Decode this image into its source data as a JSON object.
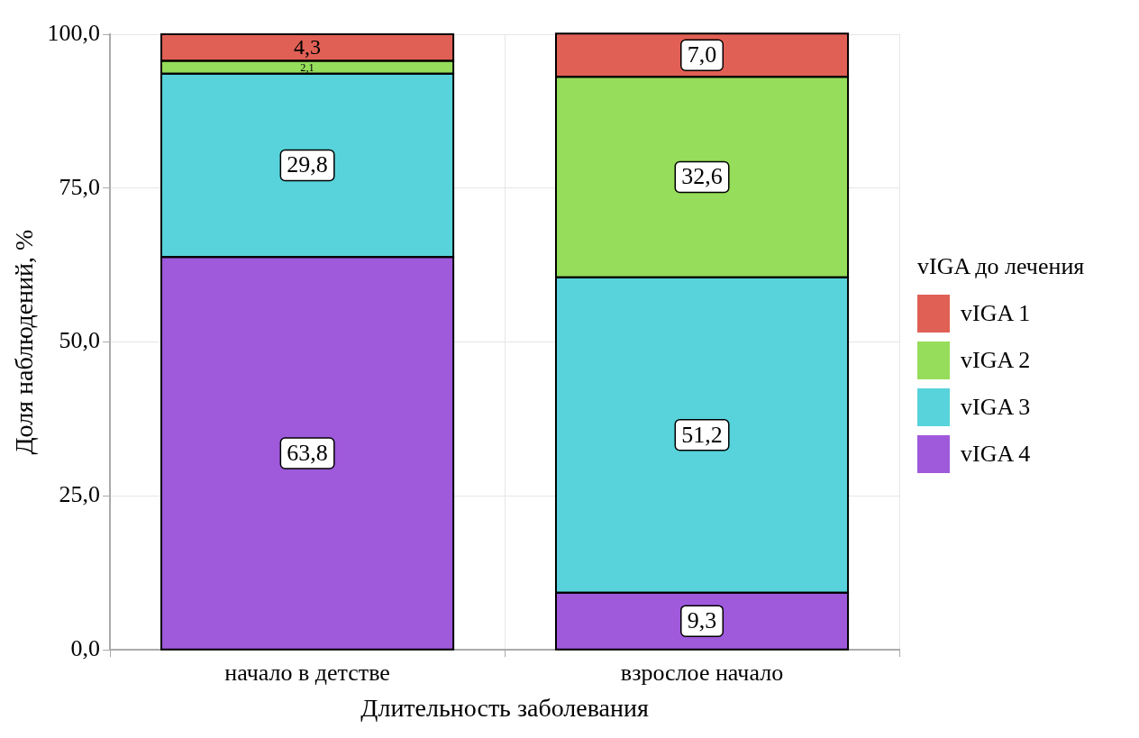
{
  "chart_data": {
    "type": "bar",
    "stacked": true,
    "xlabel": "Длительность заболевания",
    "ylabel": "Доля наблюдений, %",
    "legend_title": "vIGA до лечения",
    "legend": "right",
    "grid": true,
    "categories": [
      "начало в детстве",
      "взрослое начало"
    ],
    "ylim": [
      0,
      100
    ],
    "yticks": [
      {
        "value": 0,
        "label": "0,0"
      },
      {
        "value": 25,
        "label": "25,0"
      },
      {
        "value": 50,
        "label": "50,0"
      },
      {
        "value": 75,
        "label": "75,0"
      },
      {
        "value": 100,
        "label": "100,0"
      }
    ],
    "series": [
      {
        "name": "vIGA 4",
        "color": "#9f59db",
        "values": [
          63.8,
          9.3
        ],
        "value_labels": [
          "63,8",
          "9,3"
        ]
      },
      {
        "name": "vIGA 3",
        "color": "#58d3db",
        "values": [
          29.8,
          51.2
        ],
        "value_labels": [
          "29,8",
          "51,2"
        ]
      },
      {
        "name": "vIGA 2",
        "color": "#95dd5a",
        "values": [
          2.1,
          32.6
        ],
        "value_labels": [
          "2,1",
          "32,6"
        ]
      },
      {
        "name": "vIGA 1",
        "color": "#e06055",
        "values": [
          4.3,
          7.0
        ],
        "value_labels": [
          "4,3",
          "7,0"
        ]
      }
    ]
  }
}
